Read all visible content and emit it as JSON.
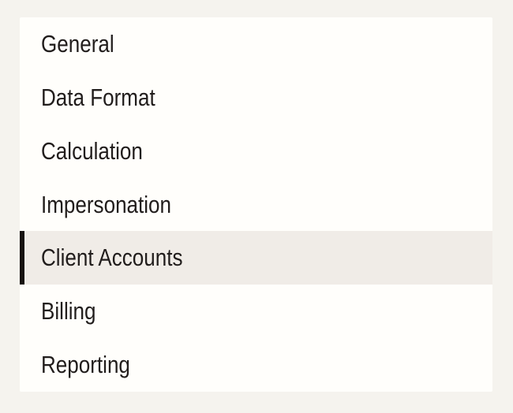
{
  "panel": {
    "name": "settings-menu",
    "items": [
      {
        "label": "General",
        "selected": false
      },
      {
        "label": "Data Format",
        "selected": false
      },
      {
        "label": "Calculation",
        "selected": false
      },
      {
        "label": "Impersonation",
        "selected": false
      },
      {
        "label": "Client Accounts",
        "selected": true
      },
      {
        "label": "Billing",
        "selected": false
      },
      {
        "label": "Reporting",
        "selected": false
      }
    ]
  },
  "colors": {
    "background": "#f5f3ee",
    "panel": "#fffefb",
    "highlight": "#f0ece7",
    "accent_bar": "#171310",
    "text": "#211d1c"
  }
}
